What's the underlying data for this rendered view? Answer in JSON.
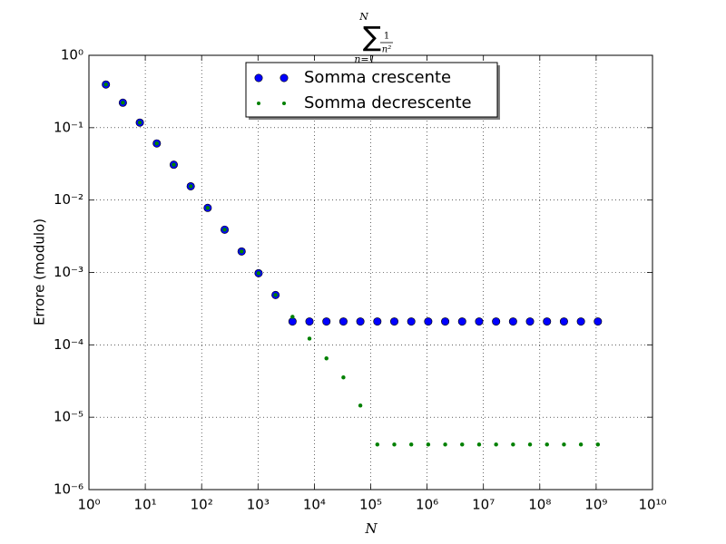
{
  "chart_data": {
    "type": "scatter",
    "title": {
      "sum": "∑",
      "upper": "N",
      "lower": "n=1",
      "numerator": "1",
      "denominator": "n²"
    },
    "x_label": "N",
    "y_label": "Errore (modulo)",
    "x": [
      2,
      4,
      8,
      16,
      32,
      64,
      128,
      256,
      512,
      1024,
      2048,
      4096,
      8192,
      16384,
      32768,
      65536,
      131072,
      262144,
      524288,
      1048576,
      2097152,
      4194304,
      8388608,
      16777216,
      33554432,
      67108864,
      134217728,
      268435456,
      536870912,
      1073741824
    ],
    "series": [
      {
        "name": "Somma crescente",
        "color": "#0000ff",
        "marker": "circle",
        "values": [
          0.3949,
          0.2213,
          0.1175,
          0.0606,
          0.0308,
          0.0155,
          0.0078,
          0.0039,
          0.00195,
          0.000976,
          0.000488,
          0.00021,
          0.00021,
          0.00021,
          0.00021,
          0.00021,
          0.00021,
          0.00021,
          0.00021,
          0.00021,
          0.00021,
          0.00021,
          0.00021,
          0.00021,
          0.00021,
          0.00021,
          0.00021,
          0.00021,
          0.00021,
          0.00021
        ]
      },
      {
        "name": "Somma decrescente",
        "color": "#008000",
        "marker": "dot",
        "values": [
          0.3949,
          0.2213,
          0.1175,
          0.0606,
          0.0308,
          0.0155,
          0.0078,
          0.0039,
          0.00195,
          0.000976,
          0.000488,
          0.000244,
          0.000122,
          6.5e-05,
          3.55e-05,
          1.45e-05,
          4.2e-06,
          4.2e-06,
          4.2e-06,
          4.2e-06,
          4.2e-06,
          4.2e-06,
          4.2e-06,
          4.2e-06,
          4.2e-06,
          4.2e-06,
          4.2e-06,
          4.2e-06,
          4.2e-06,
          4.2e-06
        ]
      }
    ],
    "xscale": "log",
    "yscale": "log",
    "xlim": [
      1,
      10000000000
    ],
    "ylim": [
      1e-06,
      1
    ],
    "xticks": [
      {
        "value": 1,
        "label": "10⁰"
      },
      {
        "value": 10,
        "label": "10¹"
      },
      {
        "value": 100,
        "label": "10²"
      },
      {
        "value": 1000,
        "label": "10³"
      },
      {
        "value": 10000,
        "label": "10⁴"
      },
      {
        "value": 100000,
        "label": "10⁵"
      },
      {
        "value": 1000000,
        "label": "10⁶"
      },
      {
        "value": 10000000,
        "label": "10⁷"
      },
      {
        "value": 100000000,
        "label": "10⁸"
      },
      {
        "value": 1000000000,
        "label": "10⁹"
      },
      {
        "value": 10000000000,
        "label": "10¹⁰"
      }
    ],
    "yticks": [
      {
        "value": 1e-06,
        "label": "10⁻⁶"
      },
      {
        "value": 1e-05,
        "label": "10⁻⁵"
      },
      {
        "value": 0.0001,
        "label": "10⁻⁴"
      },
      {
        "value": 0.001,
        "label": "10⁻³"
      },
      {
        "value": 0.01,
        "label": "10⁻²"
      },
      {
        "value": 0.1,
        "label": "10⁻¹"
      },
      {
        "value": 1,
        "label": "10⁰"
      }
    ],
    "grid": true,
    "legend": "upper center"
  }
}
